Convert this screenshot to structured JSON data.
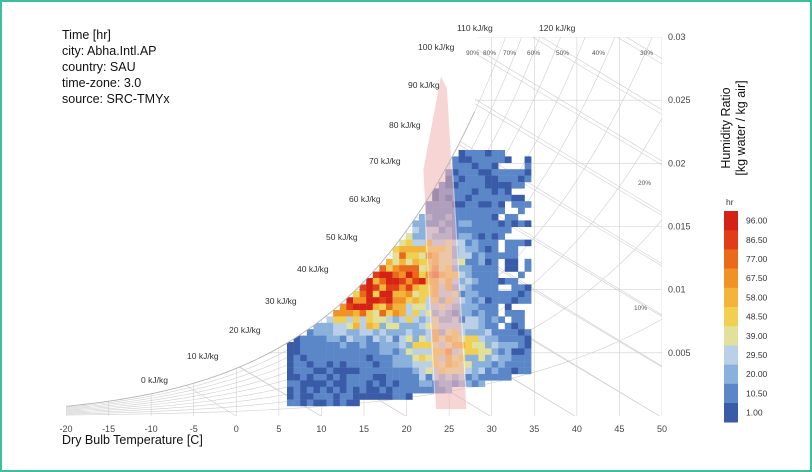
{
  "info": {
    "title": "Time [hr]",
    "city": "city: Abha.Intl.AP",
    "country": "country: SAU",
    "timezone": "time-zone: 3.0",
    "source": "source: SRC-TMYx"
  },
  "colors": {
    "frame": "#3dbf9e",
    "comfort_zone": "#f4b3b3",
    "scale": [
      "#3a5ba8",
      "#5b87c9",
      "#8ab0dc",
      "#b9d0e6",
      "#e1e19b",
      "#f1cf53",
      "#f3b43c",
      "#f09226",
      "#ea6a1c",
      "#e03d18",
      "#d42316"
    ]
  },
  "chart_data": {
    "type": "heatmap",
    "chart_kind": "psychrometric chart",
    "xlabel": "Dry Bulb Temperature [C]",
    "ylabel_line1": "Humidity Ratio",
    "ylabel_line2": "[kg water / kg air]",
    "x_ticks": [
      "-20",
      "-15",
      "-10",
      "-5",
      "0",
      "5",
      "10",
      "15",
      "20",
      "25",
      "30",
      "35",
      "40",
      "45",
      "50"
    ],
    "xlim": [
      -20,
      50
    ],
    "y_ticks": [
      "0.005",
      "0.01",
      "0.015",
      "0.02",
      "0.025",
      "0.03"
    ],
    "ylim": [
      0,
      0.03
    ],
    "enthalpy_labels": [
      "0 kJ/kg",
      "10 kJ/kg",
      "20 kJ/kg",
      "30 kJ/kg",
      "40 kJ/kg",
      "50 kJ/kg",
      "60 kJ/kg",
      "70 kJ/kg",
      "80 kJ/kg",
      "90 kJ/kg",
      "100 kJ/kg",
      "110 kJ/kg",
      "120 kJ/kg"
    ],
    "rh_labels": [
      "90%",
      "80%",
      "70%",
      "60%",
      "50%",
      "40%",
      "30%",
      "20%",
      "10%"
    ],
    "legend_title": "hr",
    "legend_values": [
      "96.00",
      "86.50",
      "77.00",
      "67.50",
      "58.00",
      "48.50",
      "39.00",
      "29.50",
      "20.00",
      "10.50",
      "1.00"
    ],
    "legend_position": "right",
    "value_range": [
      1,
      96
    ]
  }
}
